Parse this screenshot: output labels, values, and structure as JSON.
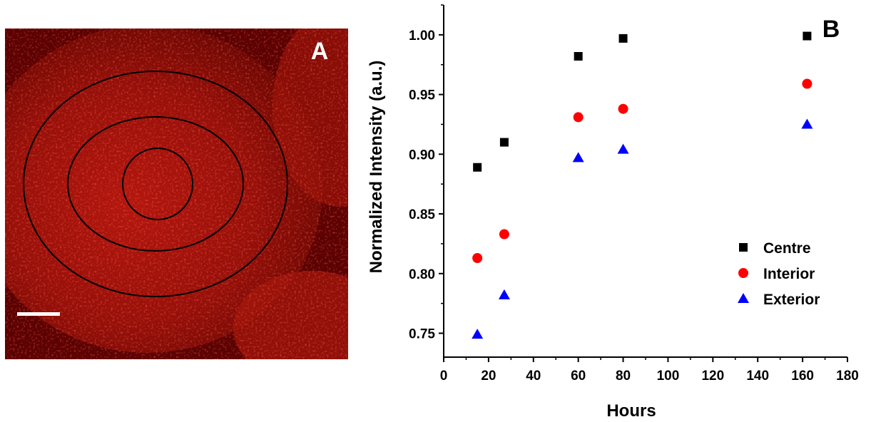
{
  "panel_a": {
    "label": "A",
    "colors": {
      "background": "#5a0000",
      "speckle": "#ff2a1a",
      "rings": "#000000",
      "scale_bar": "#ffffff"
    },
    "ring_count": 3
  },
  "panel_b": {
    "label": "B"
  },
  "chart_data": {
    "type": "scatter",
    "title": "",
    "xlabel": "Hours",
    "ylabel": "Normalized Intensity (a.u.)",
    "xlim": [
      0,
      180
    ],
    "ylim": [
      0.73,
      1.025
    ],
    "xticks": [
      0,
      20,
      40,
      60,
      80,
      100,
      120,
      140,
      160,
      180
    ],
    "yticks": [
      0.75,
      0.8,
      0.85,
      0.9,
      0.95,
      1.0
    ],
    "ytick_labels": [
      "0.75",
      "0.80",
      "0.85",
      "0.90",
      "0.95",
      "1.00"
    ],
    "grid": false,
    "legend_position": "right",
    "series": [
      {
        "name": "Centre",
        "marker": "square",
        "color": "#000000",
        "x": [
          15,
          27,
          60,
          80,
          162
        ],
        "y": [
          0.889,
          0.91,
          0.982,
          0.997,
          0.999
        ]
      },
      {
        "name": "Interior",
        "marker": "circle",
        "color": "#ff0000",
        "x": [
          15,
          27,
          60,
          80,
          162
        ],
        "y": [
          0.813,
          0.833,
          0.931,
          0.938,
          0.959
        ]
      },
      {
        "name": "Exterior",
        "marker": "triangle",
        "color": "#0000ff",
        "x": [
          15,
          27,
          60,
          80,
          162
        ],
        "y": [
          0.749,
          0.782,
          0.897,
          0.904,
          0.925
        ]
      }
    ]
  }
}
